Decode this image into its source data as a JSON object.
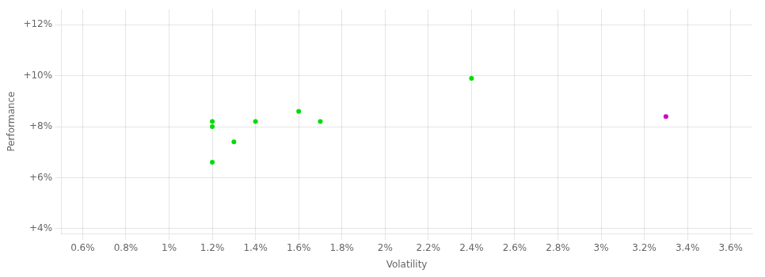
{
  "chart_data": {
    "type": "scatter",
    "xlabel": "Volatility",
    "ylabel": "Performance",
    "series": [
      {
        "color": "#00dd00",
        "x": [
          0.012,
          0.012,
          0.014,
          0.013,
          0.012,
          0.016,
          0.017,
          0.024
        ],
        "values": [
          0.082,
          0.08,
          0.082,
          0.074,
          0.066,
          0.086,
          0.082,
          0.099
        ]
      },
      {
        "color": "#cc00cc",
        "x": [
          0.033
        ],
        "values": [
          0.084
        ]
      }
    ],
    "xlim": [
      0.005,
      0.037
    ],
    "ylim": [
      0.038,
      0.126
    ],
    "xticks": [
      {
        "value": 0.006,
        "label": "0.6%"
      },
      {
        "value": 0.008,
        "label": "0.8%"
      },
      {
        "value": 0.01,
        "label": "1%"
      },
      {
        "value": 0.012,
        "label": "1.2%"
      },
      {
        "value": 0.014,
        "label": "1.4%"
      },
      {
        "value": 0.016,
        "label": "1.6%"
      },
      {
        "value": 0.018,
        "label": "1.8%"
      },
      {
        "value": 0.02,
        "label": "2%"
      },
      {
        "value": 0.022,
        "label": "2.2%"
      },
      {
        "value": 0.024,
        "label": "2.4%"
      },
      {
        "value": 0.026,
        "label": "2.6%"
      },
      {
        "value": 0.028,
        "label": "2.8%"
      },
      {
        "value": 0.03,
        "label": "3%"
      },
      {
        "value": 0.032,
        "label": "3.2%"
      },
      {
        "value": 0.034,
        "label": "3.4%"
      },
      {
        "value": 0.036,
        "label": "3.6%"
      }
    ],
    "yticks": [
      {
        "value": 0.04,
        "label": "+4%"
      },
      {
        "value": 0.06,
        "label": "+6%"
      },
      {
        "value": 0.08,
        "label": "+8%"
      },
      {
        "value": 0.1,
        "label": "+10%"
      },
      {
        "value": 0.12,
        "label": "+12%"
      }
    ],
    "grid": true
  }
}
